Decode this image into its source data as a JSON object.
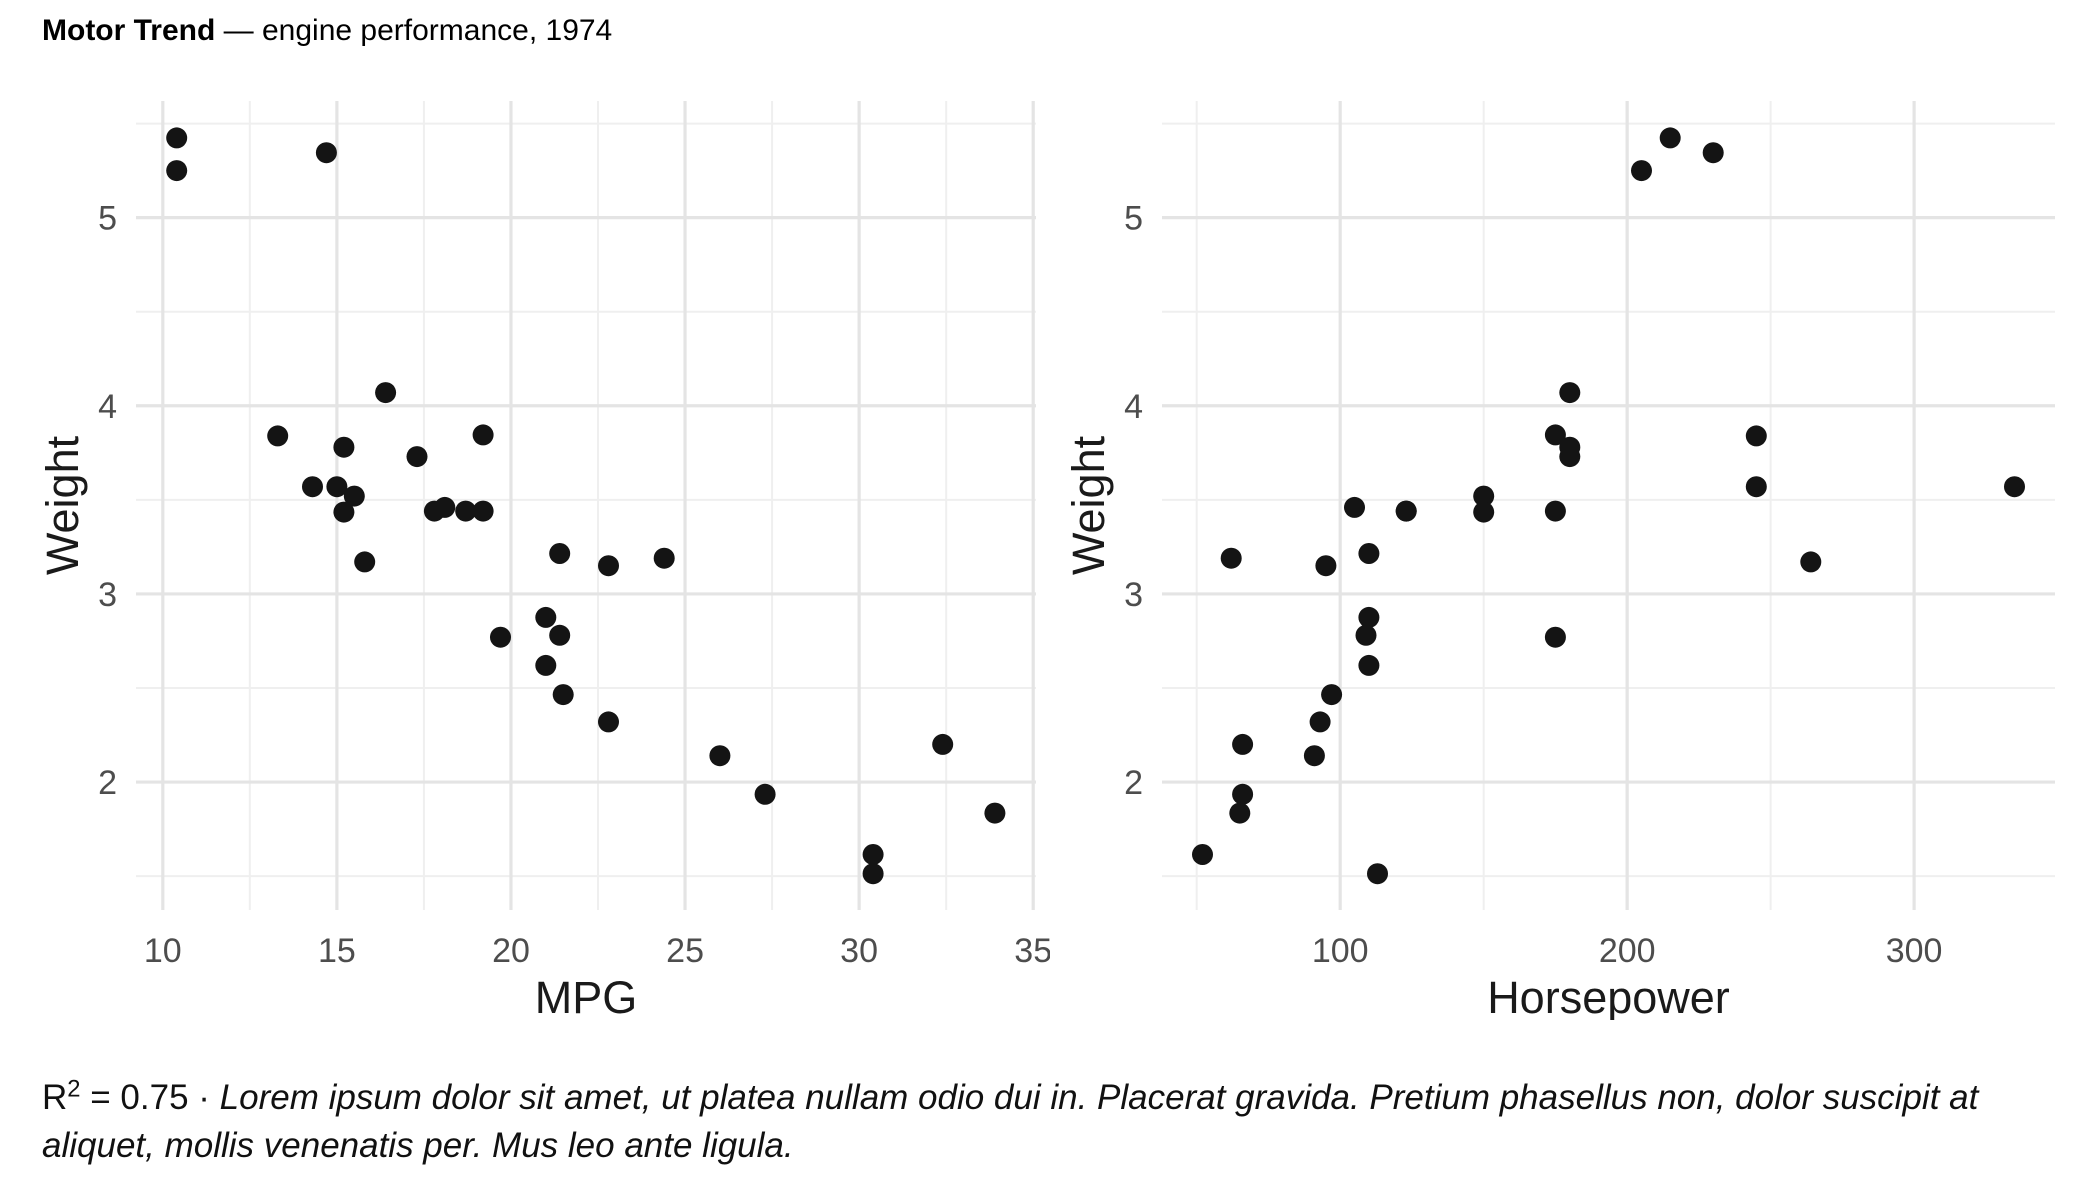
{
  "title": {
    "bold": "Motor Trend",
    "rest": " — engine performance, 1974"
  },
  "caption": {
    "r_base": "R",
    "r_sup": "2",
    "r_value": " = 0.75 · ",
    "note": "Lorem ipsum dolor sit amet, ut platea nullam odio dui in. Placerat gravida. Pretium phasellus non, dolor suscipit at aliquet, mollis venenatis per. Mus leo ante ligula."
  },
  "colors": {
    "point": "#141414",
    "grid_major": "#e4e4e4",
    "grid_minor": "#efefef",
    "tick_label": "#4d4d4d",
    "axis_title": "#1a1a1a",
    "background": "#ffffff"
  },
  "chart_data": [
    {
      "type": "scatter",
      "title": "",
      "xlabel": "MPG",
      "ylabel": "Weight",
      "xlim": [
        9.23,
        35.08
      ],
      "ylim": [
        1.32,
        5.62
      ],
      "x_major_ticks": [
        10,
        15,
        20,
        25,
        30,
        35
      ],
      "x_minor_ticks": [
        12.5,
        17.5,
        22.5,
        27.5,
        32.5
      ],
      "y_major_ticks": [
        2,
        3,
        4,
        5
      ],
      "y_minor_ticks": [
        1.5,
        2.5,
        3.5,
        4.5,
        5.5
      ],
      "grid": true,
      "legend": false,
      "x": [
        21.0,
        21.0,
        22.8,
        21.4,
        18.7,
        18.1,
        14.3,
        24.4,
        22.8,
        19.2,
        17.8,
        16.4,
        17.3,
        15.2,
        10.4,
        10.4,
        14.7,
        32.4,
        30.4,
        33.9,
        21.5,
        15.5,
        15.2,
        13.3,
        19.2,
        27.3,
        26.0,
        30.4,
        15.8,
        19.7,
        15.0,
        21.4
      ],
      "y": [
        2.62,
        2.875,
        2.32,
        3.215,
        3.44,
        3.46,
        3.57,
        3.19,
        3.15,
        3.44,
        3.44,
        4.07,
        3.73,
        3.78,
        5.25,
        5.424,
        5.345,
        2.2,
        1.615,
        1.835,
        2.465,
        3.52,
        3.435,
        3.84,
        3.845,
        1.935,
        2.14,
        1.513,
        3.17,
        2.77,
        3.57,
        2.78
      ]
    },
    {
      "type": "scatter",
      "title": "",
      "xlabel": "Horsepower",
      "ylabel": "Weight",
      "xlim": [
        37.9,
        349.1
      ],
      "ylim": [
        1.32,
        5.62
      ],
      "x_major_ticks": [
        100,
        200,
        300
      ],
      "x_minor_ticks": [
        50,
        150,
        250
      ],
      "y_major_ticks": [
        2,
        3,
        4,
        5
      ],
      "y_minor_ticks": [
        1.5,
        2.5,
        3.5,
        4.5,
        5.5
      ],
      "grid": true,
      "legend": false,
      "x": [
        110,
        110,
        93,
        110,
        175,
        105,
        245,
        62,
        95,
        123,
        123,
        180,
        180,
        180,
        205,
        215,
        230,
        66,
        52,
        65,
        97,
        150,
        150,
        245,
        175,
        66,
        91,
        113,
        264,
        175,
        335,
        109
      ],
      "y": [
        2.62,
        2.875,
        2.32,
        3.215,
        3.44,
        3.46,
        3.57,
        3.19,
        3.15,
        3.44,
        3.44,
        4.07,
        3.73,
        3.78,
        5.25,
        5.424,
        5.345,
        2.2,
        1.615,
        1.835,
        2.465,
        3.52,
        3.435,
        3.84,
        3.845,
        1.935,
        2.14,
        1.513,
        3.17,
        2.77,
        3.57,
        2.78
      ]
    }
  ]
}
